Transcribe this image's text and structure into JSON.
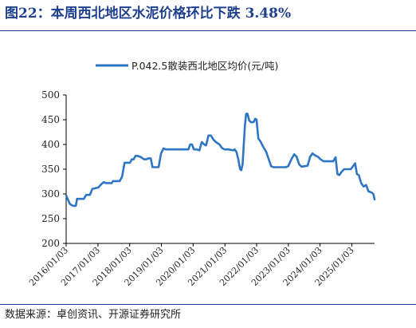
{
  "header": {
    "title": "图22：本周西北地区水泥价格环比下跌 3.48%"
  },
  "footer": {
    "source": "数据来源：卓创资讯、开源证券研究所"
  },
  "colors": {
    "title": "#1f3f8f",
    "series": "#2e75c6",
    "axis": "#000000"
  },
  "chart_data": {
    "type": "line",
    "title": "",
    "xlabel": "",
    "ylabel": "",
    "ylim": [
      200,
      500
    ],
    "yticks": [
      "200",
      "250",
      "300",
      "350",
      "400",
      "450",
      "500"
    ],
    "xticks": [
      "2016/01/03",
      "2017/01/03",
      "2018/01/03",
      "2019/01/03",
      "2020/01/03",
      "2021/01/03",
      "2022/01/03",
      "2023/01/03",
      "2024/01/03",
      "2025/01/03"
    ],
    "xrange": [
      "2016/01/03",
      "2025/09/21"
    ],
    "grid": false,
    "legend": "top-center",
    "series": [
      {
        "name": "P.042.5散装西北地区均价(元/吨)",
        "points": [
          [
            "2016/01/03",
            297
          ],
          [
            "2016/02/14",
            280
          ],
          [
            "2016/03/20",
            276
          ],
          [
            "2016/04/24",
            276
          ],
          [
            "2016/05/08",
            290
          ],
          [
            "2016/06/12",
            290
          ],
          [
            "2016/07/24",
            290
          ],
          [
            "2016/08/21",
            298
          ],
          [
            "2016/10/02",
            298
          ],
          [
            "2016/10/30",
            310
          ],
          [
            "2016/12/11",
            312
          ],
          [
            "2017/01/08",
            313
          ],
          [
            "2017/02/12",
            320
          ],
          [
            "2017/03/12",
            324
          ],
          [
            "2017/04/02",
            322
          ],
          [
            "2017/05/07",
            322
          ],
          [
            "2017/06/11",
            322
          ],
          [
            "2017/06/25",
            326
          ],
          [
            "2017/08/06",
            326
          ],
          [
            "2017/09/10",
            326
          ],
          [
            "2017/10/08",
            335
          ],
          [
            "2017/11/05",
            363
          ],
          [
            "2017/12/10",
            363
          ],
          [
            "2018/01/07",
            363
          ],
          [
            "2018/01/28",
            370
          ],
          [
            "2018/02/18",
            370
          ],
          [
            "2018/03/11",
            377
          ],
          [
            "2018/04/01",
            377
          ],
          [
            "2018/05/06",
            375
          ],
          [
            "2018/06/17",
            370
          ],
          [
            "2018/07/15",
            370
          ],
          [
            "2018/08/05",
            372
          ],
          [
            "2018/09/02",
            372
          ],
          [
            "2018/09/23",
            354
          ],
          [
            "2018/11/04",
            354
          ],
          [
            "2018/12/02",
            354
          ],
          [
            "2018/12/30",
            382
          ],
          [
            "2019/01/27",
            392
          ],
          [
            "2019/02/24",
            390
          ],
          [
            "2019/03/31",
            390
          ],
          [
            "2019/06/30",
            390
          ],
          [
            "2019/09/29",
            390
          ],
          [
            "2019/11/10",
            390
          ],
          [
            "2019/12/01",
            400
          ],
          [
            "2019/12/22",
            400
          ],
          [
            "2020/01/12",
            390
          ],
          [
            "2020/02/16",
            390
          ],
          [
            "2020/03/15",
            388
          ],
          [
            "2020/04/12",
            405
          ],
          [
            "2020/05/10",
            400
          ],
          [
            "2020/05/31",
            398
          ],
          [
            "2020/06/28",
            418
          ],
          [
            "2020/07/26",
            418
          ],
          [
            "2020/08/23",
            410
          ],
          [
            "2020/09/20",
            405
          ],
          [
            "2020/11/01",
            400
          ],
          [
            "2020/11/29",
            393
          ],
          [
            "2020/12/27",
            390
          ],
          [
            "2021/02/14",
            390
          ],
          [
            "2021/04/11",
            388
          ],
          [
            "2021/04/25",
            390
          ],
          [
            "2021/05/16",
            385
          ],
          [
            "2021/06/06",
            370
          ],
          [
            "2021/06/27",
            350
          ],
          [
            "2021/07/11",
            348
          ],
          [
            "2021/07/25",
            360
          ],
          [
            "2021/08/22",
            440
          ],
          [
            "2021/09/05",
            462
          ],
          [
            "2021/09/19",
            462
          ],
          [
            "2021/10/10",
            448
          ],
          [
            "2021/10/31",
            445
          ],
          [
            "2021/11/28",
            445
          ],
          [
            "2021/12/19",
            452
          ],
          [
            "2022/01/02",
            450
          ],
          [
            "2022/01/23",
            412
          ],
          [
            "2022/02/20",
            405
          ],
          [
            "2022/03/20",
            395
          ],
          [
            "2022/04/24",
            385
          ],
          [
            "2022/05/22",
            370
          ],
          [
            "2022/06/19",
            356
          ],
          [
            "2022/07/17",
            354
          ],
          [
            "2022/10/16",
            354
          ],
          [
            "2022/12/04",
            354
          ],
          [
            "2023/01/01",
            356
          ],
          [
            "2023/02/12",
            372
          ],
          [
            "2023/03/12",
            380
          ],
          [
            "2023/04/09",
            375
          ],
          [
            "2023/05/07",
            360
          ],
          [
            "2023/06/04",
            355
          ],
          [
            "2023/07/02",
            356
          ],
          [
            "2023/08/13",
            357
          ],
          [
            "2023/09/10",
            375
          ],
          [
            "2023/10/08",
            382
          ],
          [
            "2023/11/05",
            378
          ],
          [
            "2023/12/10",
            375
          ],
          [
            "2024/01/07",
            370
          ],
          [
            "2024/02/11",
            366
          ],
          [
            "2024/05/05",
            366
          ],
          [
            "2024/06/02",
            366
          ],
          [
            "2024/06/30",
            374
          ],
          [
            "2024/07/21",
            340
          ],
          [
            "2024/08/11",
            338
          ],
          [
            "2024/09/08",
            345
          ],
          [
            "2024/10/06",
            350
          ],
          [
            "2024/11/17",
            350
          ],
          [
            "2024/12/22",
            350
          ],
          [
            "2025/01/19",
            357
          ],
          [
            "2025/02/09",
            362
          ],
          [
            "2025/03/02",
            340
          ],
          [
            "2025/03/23",
            338
          ],
          [
            "2025/04/20",
            322
          ],
          [
            "2025/05/18",
            315
          ],
          [
            "2025/06/15",
            318
          ],
          [
            "2025/07/13",
            305
          ],
          [
            "2025/08/17",
            303
          ],
          [
            "2025/09/07",
            300
          ],
          [
            "2025/09/21",
            289
          ]
        ]
      }
    ]
  }
}
